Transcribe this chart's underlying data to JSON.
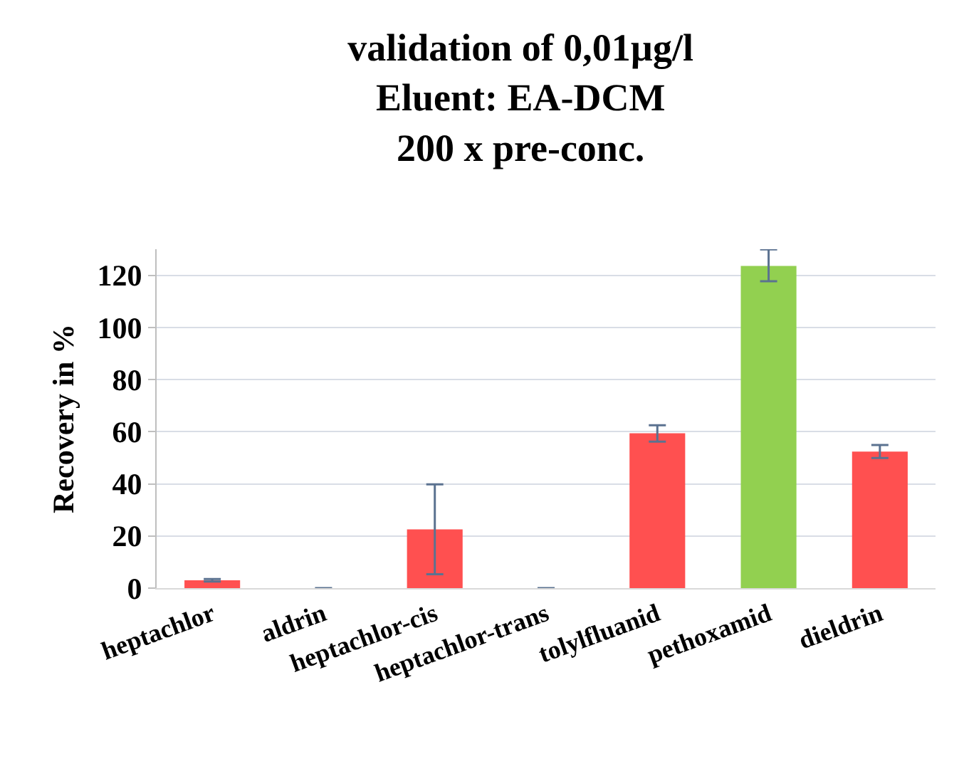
{
  "chart_data": {
    "type": "bar",
    "title": "validation of 0,01µg/l\nEluent: EA-DCM\n200 x pre-conc.",
    "ylabel": "Recovery in %",
    "categories": [
      "heptachlor",
      "aldrin",
      "heptachlor-cis",
      "heptachlor-trans",
      "tolylfluanid",
      "pethoxamid",
      "dieldrin"
    ],
    "values": [
      3,
      0,
      22.5,
      0,
      59.4,
      123.6,
      52.4
    ],
    "colors": [
      "#ff5050",
      "#ff5050",
      "#ff5050",
      "#ff5050",
      "#ff5050",
      "#92d050",
      "#ff5050"
    ],
    "errors": [
      0.5,
      0,
      [
        5.3,
        39.8
      ],
      0,
      [
        56.2,
        62.5
      ],
      [
        117.7,
        129.9
      ],
      [
        49.9,
        54.9
      ]
    ],
    "ylim": [
      0,
      130
    ],
    "yticks": [
      0,
      20,
      40,
      60,
      80,
      100,
      120
    ],
    "grid": "y"
  }
}
